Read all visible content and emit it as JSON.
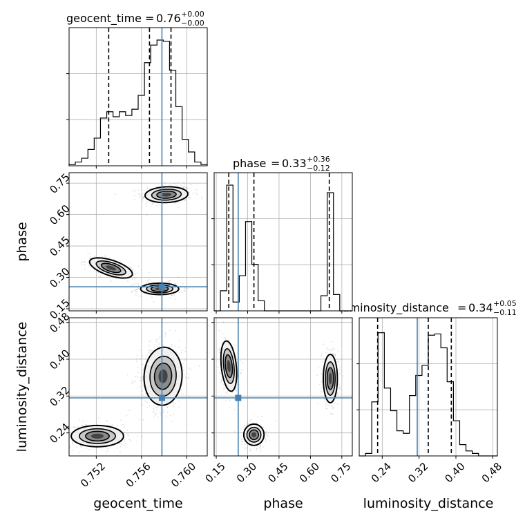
{
  "chart_data": {
    "type": "corner",
    "parameters": [
      "geocent_time",
      "phase",
      "luminosity_distance"
    ],
    "titles": [
      {
        "name": "geocent_time",
        "median": "0.76",
        "plus": "+0.00",
        "minus": "−0.00"
      },
      {
        "name": "phase",
        "median": "0.33",
        "plus": "+0.36",
        "minus": "−0.12"
      },
      {
        "name": "luminosity_distance",
        "median": "0.34",
        "plus": "+0.05",
        "minus": "−0.11"
      }
    ],
    "ranges": {
      "geocent_time": [
        0.7496,
        0.7618
      ],
      "phase": [
        0.14,
        0.8
      ],
      "luminosity_distance": [
        0.19,
        0.49
      ]
    },
    "ticks": {
      "geocent_time": {
        "values": [
          0.752,
          0.756,
          0.76
        ],
        "labels": [
          "0.752",
          "0.756",
          "0.760"
        ]
      },
      "phase_y": {
        "values": [
          0.15,
          0.3,
          0.45,
          0.6,
          0.75
        ],
        "labels": [
          "0.15",
          "0.30",
          "0.45",
          "0.60",
          "0.75"
        ]
      },
      "phase_x": {
        "values": [
          0.15,
          0.3,
          0.45,
          0.6,
          0.75
        ],
        "labels": [
          "0.15",
          "0.30",
          "0.45",
          "0.60",
          "0.75"
        ]
      },
      "luminosity_distance_y": {
        "values": [
          0.24,
          0.32,
          0.4,
          0.48
        ],
        "labels": [
          "0.24",
          "0.32",
          "0.40",
          "0.48"
        ]
      },
      "luminosity_distance_x": {
        "values": [
          0.24,
          0.32,
          0.4,
          0.48
        ],
        "labels": [
          "0.24",
          "0.32",
          "0.40",
          "0.48"
        ]
      }
    },
    "truths": {
      "geocent_time": 0.7578,
      "phase": 0.255,
      "luminosity_distance": 0.316
    },
    "quantiles": {
      "geocent_time": [
        0.7531,
        0.7567,
        0.7586
      ],
      "phase": [
        0.21,
        0.33,
        0.69
      ],
      "luminosity_distance": [
        0.23,
        0.34,
        0.39
      ]
    },
    "histograms": {
      "geocent_time": [
        0.01,
        0.03,
        0.06,
        0.13,
        0.22,
        0.38,
        0.43,
        0.39,
        0.43,
        0.4,
        0.45,
        0.56,
        0.82,
        0.96,
        1.0,
        0.99,
        0.76,
        0.47,
        0.21,
        0.11,
        0.03,
        0.01
      ],
      "phase": [
        0.0,
        0.16,
        1.0,
        0.07,
        0.28,
        0.71,
        0.37,
        0.08,
        0.0,
        0.0,
        0.0,
        0.0,
        0.0,
        0.0,
        0.0,
        0.0,
        0.0,
        0.12,
        0.94,
        0.13,
        0.0,
        0.0
      ],
      "luminosity_distance": [
        0.0,
        0.02,
        0.43,
        0.98,
        0.54,
        0.36,
        0.2,
        0.18,
        0.48,
        0.64,
        0.72,
        0.96,
        0.97,
        0.86,
        0.59,
        0.28,
        0.09,
        0.04,
        0.02,
        0.0,
        0.0,
        0.0
      ]
    },
    "modes": {
      "geocent_time_vs_phase": [
        {
          "x": 0.7582,
          "y": 0.695,
          "sx": 0.0009,
          "sy": 0.018,
          "rho": 0.1,
          "w": 0.46
        },
        {
          "x": 0.7533,
          "y": 0.345,
          "sx": 0.0009,
          "sy": 0.023,
          "rho": -0.6,
          "w": 0.22
        },
        {
          "x": 0.7576,
          "y": 0.245,
          "sx": 0.0008,
          "sy": 0.013,
          "rho": 0.0,
          "w": 0.32
        }
      ],
      "geocent_time_vs_luminosity_distance": [
        {
          "x": 0.7579,
          "y": 0.363,
          "sx": 0.0008,
          "sy": 0.03,
          "rho": 0.05,
          "w": 0.68
        },
        {
          "x": 0.7521,
          "y": 0.233,
          "sx": 0.0011,
          "sy": 0.011,
          "rho": 0.0,
          "w": 0.32
        }
      ],
      "phase_vs_luminosity_distance": [
        {
          "x": 0.21,
          "y": 0.385,
          "sx": 0.018,
          "sy": 0.026,
          "rho": -0.3,
          "w": 0.33
        },
        {
          "x": 0.33,
          "y": 0.236,
          "sx": 0.023,
          "sy": 0.011,
          "rho": 0.0,
          "w": 0.32
        },
        {
          "x": 0.695,
          "y": 0.358,
          "sx": 0.016,
          "sy": 0.025,
          "rho": 0.0,
          "w": 0.35
        }
      ]
    },
    "grid": true
  }
}
